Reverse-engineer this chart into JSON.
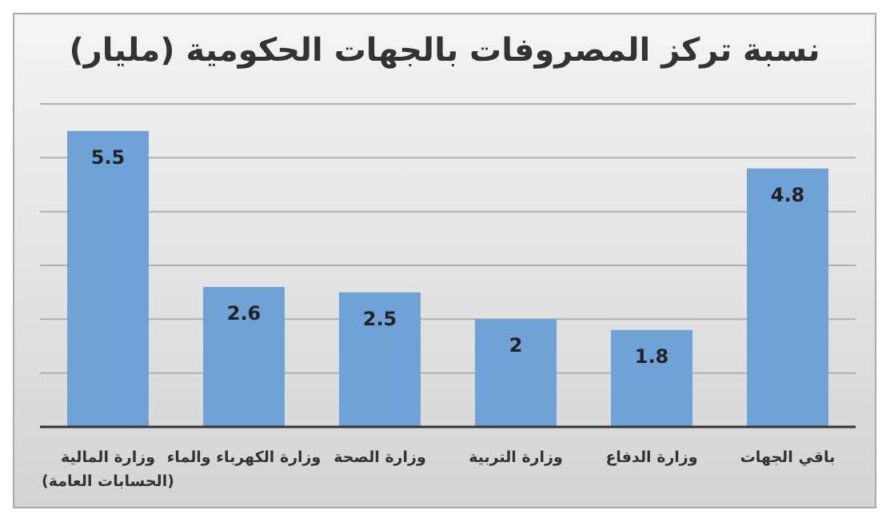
{
  "chart_data": {
    "type": "bar",
    "title": "نسبة تركز المصروفات بالجهات الحكومية (مليار)",
    "categories": [
      "وزارة المالية\n(الحسابات العامة)",
      "وزارة الكهرباء والماء",
      "وزارة الصحة",
      "وزارة التربية",
      "وزارة الدفاع",
      "باقي الجهات"
    ],
    "values": [
      5.5,
      2.6,
      2.5,
      2,
      1.8,
      4.8
    ],
    "color": "#6fa3d8",
    "ylim": [
      0,
      6
    ],
    "yticks": [
      {
        "value": 0,
        "label": null
      },
      {
        "value": 1,
        "label": null
      },
      {
        "value": 2,
        "label": null
      },
      {
        "value": 3,
        "label": null
      },
      {
        "value": 4,
        "label": null
      },
      {
        "value": 5,
        "label": null
      },
      {
        "value": 6,
        "label": null
      }
    ],
    "grid": "y",
    "tick_labels": "x",
    "data_labels": true
  }
}
